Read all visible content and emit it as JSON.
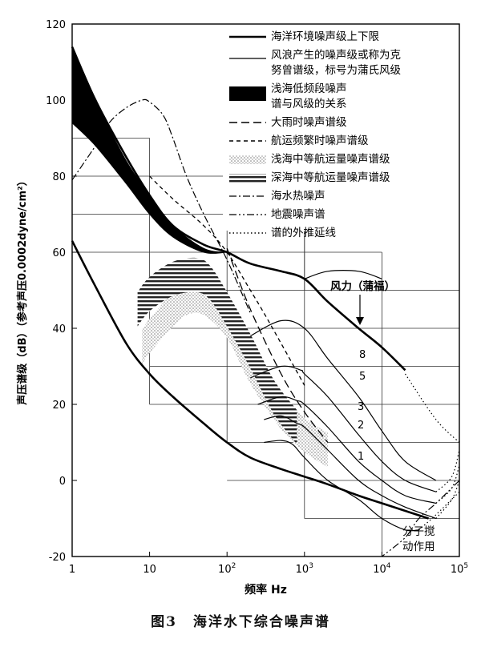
{
  "caption": {
    "number": "图3",
    "title": "海洋水下综合噪声谱"
  },
  "chart_data": {
    "type": "line",
    "xscale": "log",
    "xlim": [
      1,
      100000
    ],
    "ylim": [
      -20,
      120
    ],
    "xlabel": "频率 Hz",
    "ylabel": "声压谱级（dB）（参考声压0.0002dyne/cm²）",
    "x_ticks": [
      {
        "value": 1,
        "label": "1"
      },
      {
        "value": 10,
        "label": "10"
      },
      {
        "value": 100,
        "label": "10",
        "sup": "2"
      },
      {
        "value": 1000,
        "label": "10",
        "sup": "3"
      },
      {
        "value": 10000,
        "label": "10",
        "sup": "4"
      },
      {
        "value": 100000,
        "label": "10",
        "sup": "5"
      }
    ],
    "y_ticks": [
      -20,
      0,
      20,
      40,
      60,
      80,
      100,
      120
    ],
    "legend": [
      {
        "style": "thick-solid",
        "text": [
          "海洋环境噪声级上下限"
        ]
      },
      {
        "style": "thin-solid",
        "text": [
          "风浪产生的噪声级或称为克",
          "努曾谱级，标号为蒲氏风级"
        ]
      },
      {
        "style": "black-band",
        "text": [
          "浅海低频段噪声",
          "谱与风级的关系"
        ]
      },
      {
        "style": "long-dash",
        "text": [
          "大雨时噪声谱级"
        ]
      },
      {
        "style": "short-dash",
        "text": [
          "航运频繁时噪声谱级"
        ]
      },
      {
        "style": "dotted-band",
        "text": [
          "浅海中等航运量噪声谱级"
        ]
      },
      {
        "style": "hatched-band",
        "text": [
          "深海中等航运量噪声谱级"
        ]
      },
      {
        "style": "dash-dot",
        "text": [
          "海水热噪声"
        ]
      },
      {
        "style": "dash-dot-dot",
        "text": [
          "地震噪声谱"
        ]
      },
      {
        "style": "dots",
        "text": [
          "谱的外推延线"
        ]
      }
    ],
    "annotations": {
      "wind_force": "风力（蒲福）",
      "molecular": [
        "分子搅",
        "动作用"
      ],
      "wind_labels": [
        "8",
        "5",
        "3",
        "2",
        "1"
      ]
    },
    "series": [
      {
        "kind": "upper_limit",
        "points": [
          [
            1,
            114
          ],
          [
            2,
            100
          ],
          [
            5,
            85
          ],
          [
            10,
            75
          ],
          [
            20,
            67
          ],
          [
            50,
            62
          ],
          [
            100,
            60
          ],
          [
            200,
            57
          ],
          [
            500,
            55
          ],
          [
            1000,
            53
          ],
          [
            2000,
            47
          ],
          [
            5000,
            40
          ],
          [
            10000,
            35
          ],
          [
            20000,
            29
          ]
        ]
      },
      {
        "kind": "lower_limit",
        "points": [
          [
            1,
            63
          ],
          [
            2,
            51
          ],
          [
            5,
            36
          ],
          [
            10,
            28
          ],
          [
            20,
            22
          ],
          [
            50,
            15
          ],
          [
            100,
            10
          ],
          [
            200,
            6
          ],
          [
            500,
            3
          ],
          [
            1000,
            1
          ],
          [
            2000,
            -1
          ],
          [
            5000,
            -4
          ],
          [
            10000,
            -6
          ],
          [
            20000,
            -8
          ],
          [
            40000,
            -10
          ]
        ]
      },
      {
        "kind": "low_freq_band_top",
        "points": [
          [
            1,
            114
          ],
          [
            2,
            100
          ],
          [
            5,
            84
          ],
          [
            10,
            75
          ],
          [
            20,
            67
          ],
          [
            50,
            61
          ],
          [
            100,
            60
          ]
        ]
      },
      {
        "kind": "low_freq_band_bottom",
        "points": [
          [
            1,
            94
          ],
          [
            2,
            88
          ],
          [
            5,
            78
          ],
          [
            10,
            70
          ],
          [
            20,
            64
          ],
          [
            50,
            60
          ],
          [
            100,
            60
          ]
        ]
      },
      {
        "kind": "heavy_rain",
        "points": [
          [
            100,
            61
          ],
          [
            200,
            45
          ],
          [
            500,
            28
          ],
          [
            1000,
            18
          ],
          [
            2000,
            10
          ]
        ]
      },
      {
        "kind": "heavy_shipping",
        "points": [
          [
            10,
            80
          ],
          [
            20,
            74
          ],
          [
            50,
            67
          ],
          [
            100,
            60
          ],
          [
            200,
            50
          ],
          [
            300,
            44
          ],
          [
            500,
            36
          ],
          [
            1000,
            25
          ]
        ]
      },
      {
        "kind": "shallow_shipping_band",
        "points": [
          [
            8,
            35
          ],
          [
            10,
            38
          ],
          [
            20,
            45
          ],
          [
            30,
            48
          ],
          [
            50,
            48
          ],
          [
            100,
            42
          ],
          [
            200,
            30
          ],
          [
            500,
            18
          ],
          [
            1000,
            12
          ],
          [
            2000,
            8
          ]
        ]
      },
      {
        "kind": "deep_shipping_band",
        "points": [
          [
            7,
            45
          ],
          [
            10,
            49
          ],
          [
            20,
            53
          ],
          [
            40,
            54
          ],
          [
            60,
            52
          ],
          [
            100,
            45
          ],
          [
            200,
            34
          ],
          [
            400,
            22
          ],
          [
            800,
            14
          ]
        ]
      },
      {
        "kind": "thermal_noise",
        "points": [
          [
            100000,
            0
          ],
          [
            50000,
            -6
          ],
          [
            30000,
            -10
          ],
          [
            20000,
            -15
          ],
          [
            10000,
            -20
          ]
        ]
      },
      {
        "kind": "seismic",
        "points": [
          [
            1,
            79
          ],
          [
            2,
            88
          ],
          [
            3,
            94
          ],
          [
            5,
            98
          ],
          [
            8,
            100
          ],
          [
            10,
            99.5
          ],
          [
            15,
            96
          ],
          [
            20,
            90
          ],
          [
            30,
            80
          ],
          [
            50,
            70
          ],
          [
            100,
            58
          ],
          [
            200,
            44
          ]
        ]
      },
      {
        "kind": "wind",
        "label": "1",
        "points": [
          [
            300,
            10
          ],
          [
            500,
            10.5
          ],
          [
            700,
            9.5
          ],
          [
            1000,
            6
          ],
          [
            2000,
            0
          ],
          [
            5000,
            -5
          ],
          [
            10000,
            -10
          ],
          [
            20000,
            -13
          ],
          [
            30000,
            -13
          ]
        ]
      },
      {
        "kind": "wind",
        "label": "2",
        "points": [
          [
            300,
            16
          ],
          [
            500,
            17
          ],
          [
            800,
            15
          ],
          [
            1000,
            14
          ],
          [
            2000,
            8
          ],
          [
            5000,
            0
          ],
          [
            10000,
            -4
          ],
          [
            20000,
            -7
          ],
          [
            50000,
            -10
          ]
        ]
      },
      {
        "kind": "wind",
        "label": "3",
        "points": [
          [
            250,
            20
          ],
          [
            500,
            22
          ],
          [
            800,
            21
          ],
          [
            1000,
            20
          ],
          [
            2000,
            14
          ],
          [
            5000,
            5
          ],
          [
            10000,
            0
          ],
          [
            20000,
            -4
          ],
          [
            50000,
            -6
          ]
        ]
      },
      {
        "kind": "wind",
        "label": "5",
        "points": [
          [
            200,
            27
          ],
          [
            500,
            30
          ],
          [
            900,
            29
          ],
          [
            1000,
            28
          ],
          [
            2000,
            22
          ],
          [
            5000,
            12
          ],
          [
            10000,
            5
          ],
          [
            20000,
            0
          ],
          [
            50000,
            -3
          ]
        ]
      },
      {
        "kind": "wind",
        "label": "8",
        "points": [
          [
            200,
            38
          ],
          [
            500,
            42
          ],
          [
            1000,
            40
          ],
          [
            2000,
            32
          ],
          [
            5000,
            22
          ],
          [
            10000,
            13
          ],
          [
            20000,
            5
          ],
          [
            50000,
            0
          ]
        ]
      },
      {
        "kind": "wind_top",
        "points": [
          [
            1000,
            53
          ],
          [
            2000,
            55
          ],
          [
            5000,
            55
          ],
          [
            10000,
            53
          ]
        ]
      },
      {
        "kind": "extrapolation",
        "points": [
          [
            20000,
            28
          ],
          [
            50000,
            16
          ],
          [
            100000,
            10
          ]
        ]
      },
      {
        "kind": "extrapolation",
        "points": [
          [
            30000,
            -13
          ],
          [
            50000,
            -9
          ],
          [
            100000,
            -3
          ]
        ]
      },
      {
        "kind": "extrapolation",
        "points": [
          [
            50000,
            -10
          ],
          [
            80000,
            -5
          ],
          [
            100000,
            0
          ]
        ]
      },
      {
        "kind": "extrapolation",
        "points": [
          [
            50000,
            -6
          ],
          [
            80000,
            -2
          ],
          [
            100000,
            4
          ]
        ]
      },
      {
        "kind": "extrapolation",
        "points": [
          [
            50000,
            -3
          ],
          [
            80000,
            1
          ],
          [
            100000,
            8
          ]
        ]
      }
    ]
  }
}
